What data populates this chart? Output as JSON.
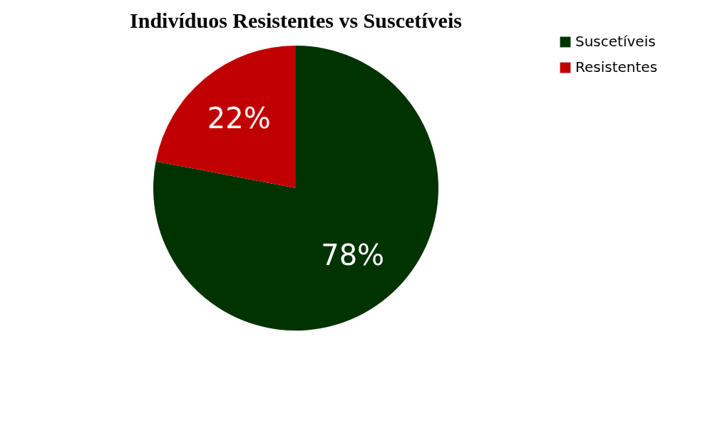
{
  "chart_data": {
    "type": "pie",
    "title": "Indivíduos Resistentes vs Suscetíveis",
    "categories": [
      "Suscetíveis",
      "Resistentes"
    ],
    "values": [
      78,
      22
    ],
    "colors": [
      "#003300",
      "#c00000"
    ],
    "value_labels": [
      "78%",
      "22%"
    ],
    "legend": "right"
  }
}
